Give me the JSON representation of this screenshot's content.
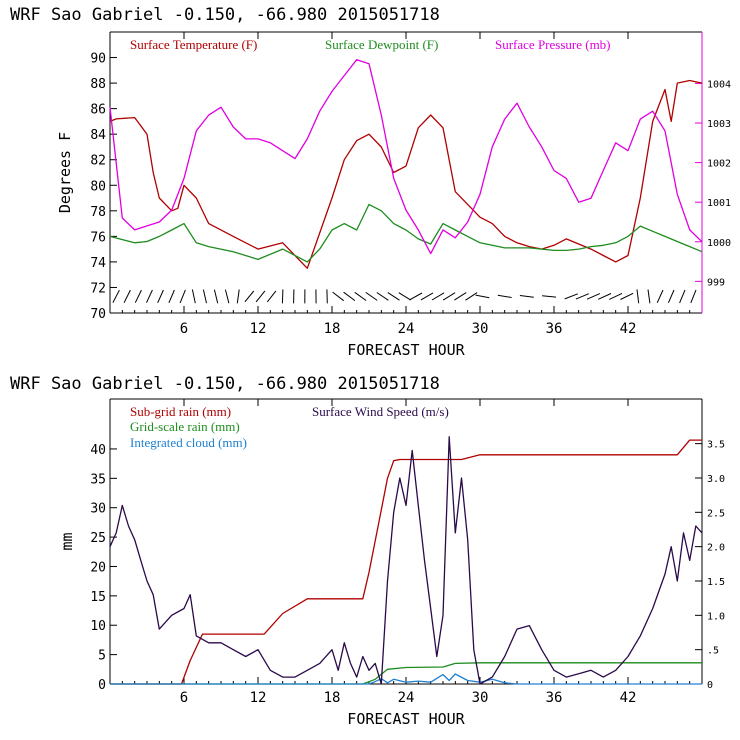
{
  "chart_data": [
    {
      "type": "line",
      "title": "WRF   Sao Gabriel    -0.150, -66.980  2015051718",
      "xlabel": "FORECAST HOUR",
      "ylabel": "Degrees F",
      "xlim": [
        0,
        48
      ],
      "ylim": [
        70,
        92
      ],
      "y2lim": [
        998.2,
        1005.3
      ],
      "x_ticks": [
        6,
        12,
        18,
        24,
        30,
        36,
        42
      ],
      "y_ticks": [
        70,
        72,
        74,
        76,
        78,
        80,
        82,
        84,
        86,
        88,
        90
      ],
      "y2_ticks": [
        999,
        1000,
        1001,
        1002,
        1003,
        1004
      ],
      "legend": [
        "Surface Temperature (F)",
        "Surface Dewpoint (F)",
        "Surface Pressure (mb)"
      ],
      "series": [
        {
          "name": "Surface Temperature (F)",
          "axis": "left",
          "color": "#b00000",
          "x": [
            0,
            0.5,
            2,
            3,
            3.5,
            4,
            5,
            5.5,
            6,
            7,
            8,
            10,
            12,
            14,
            16,
            18,
            19,
            20,
            21,
            22,
            23,
            24,
            25,
            26,
            27,
            28,
            29,
            30,
            31,
            32,
            33,
            34,
            35,
            36,
            37,
            38,
            39,
            40,
            41,
            42,
            43,
            44,
            45,
            45.5,
            46,
            47,
            48
          ],
          "y": [
            85,
            85.2,
            85.3,
            84,
            81,
            79,
            78,
            78.2,
            80,
            79,
            77,
            76,
            75,
            75.5,
            73.5,
            79,
            82,
            83.5,
            84,
            83,
            81,
            81.5,
            84.5,
            85.5,
            84.5,
            79.5,
            78.5,
            77.5,
            77,
            76,
            75.5,
            75.2,
            75,
            75.3,
            75.8,
            75.4,
            75,
            74.5,
            74,
            74.5,
            79,
            85,
            87.5,
            85,
            88,
            88.2,
            88
          ]
        },
        {
          "name": "Surface Dewpoint (F)",
          "axis": "left",
          "color": "#1e8c1e",
          "x": [
            0,
            2,
            3,
            4,
            5,
            6,
            7,
            8,
            10,
            12,
            14,
            16,
            17,
            18,
            19,
            20,
            21,
            22,
            23,
            24,
            25,
            26,
            27,
            28,
            29,
            30,
            31,
            32,
            33,
            34,
            35,
            36,
            37,
            38,
            39,
            40,
            41,
            42,
            43,
            44,
            45,
            46,
            47,
            48
          ],
          "y": [
            76,
            75.5,
            75.6,
            76,
            76.5,
            77,
            75.5,
            75.2,
            74.8,
            74.2,
            75,
            74,
            75,
            76.5,
            77,
            76.5,
            78.5,
            78,
            77,
            76.5,
            75.8,
            75.4,
            77,
            76.5,
            76,
            75.5,
            75.3,
            75.1,
            75.1,
            75.1,
            75,
            74.9,
            74.9,
            75,
            75.2,
            75.3,
            75.5,
            76,
            76.8,
            76.4,
            76,
            75.6,
            75.2,
            74.8
          ]
        },
        {
          "name": "Surface Pressure (mb)",
          "axis": "right",
          "color": "#e000e0",
          "x": [
            0,
            1,
            2,
            3,
            4,
            5,
            6,
            7,
            8,
            9,
            10,
            11,
            12,
            13,
            14,
            15,
            16,
            17,
            18,
            19,
            20,
            21,
            22,
            23,
            24,
            25,
            26,
            27,
            28,
            29,
            30,
            31,
            32,
            33,
            34,
            35,
            36,
            37,
            38,
            39,
            40,
            41,
            42,
            43,
            44,
            45,
            46,
            47,
            48
          ],
          "y": [
            1003.4,
            1000.6,
            1000.3,
            1000.4,
            1000.5,
            1000.8,
            1001.6,
            1002.8,
            1003.2,
            1003.4,
            1002.9,
            1002.6,
            1002.6,
            1002.5,
            1002.3,
            1002.1,
            1002.6,
            1003.3,
            1003.8,
            1004.2,
            1004.6,
            1004.5,
            1003.2,
            1001.6,
            1000.8,
            1000.3,
            999.7,
            1000.3,
            1000.1,
            1000.5,
            1001.2,
            1002.4,
            1003.1,
            1003.5,
            1002.9,
            1002.4,
            1001.8,
            1001.6,
            1001.0,
            1001.1,
            1001.8,
            1002.5,
            1002.3,
            1003.1,
            1003.3,
            1002.8,
            1001.2,
            1000.3,
            1000.0
          ]
        }
      ]
    },
    {
      "type": "line",
      "title": "WRF   Sao Gabriel    -0.150, -66.980  2015051718",
      "xlabel": "FORECAST HOUR",
      "ylabel": "mm",
      "xlim": [
        0,
        48
      ],
      "ylim": [
        0,
        48.5
      ],
      "y2lim": [
        0,
        4.15
      ],
      "x_ticks": [
        6,
        12,
        18,
        24,
        30,
        36,
        42
      ],
      "y_ticks": [
        0,
        5,
        10,
        15,
        20,
        25,
        30,
        35,
        40
      ],
      "y2_ticks": [
        0,
        0.5,
        1.0,
        1.5,
        2.0,
        2.5,
        3.0,
        3.5
      ],
      "y2_tick_labels": [
        "0",
        ".5",
        "1.0",
        "1.5",
        "2.0",
        "2.5",
        "3.0",
        "3.5"
      ],
      "legend": [
        "Sub-grid rain (mm)",
        "Surface Wind Speed (m/s)",
        "Grid-scale rain (mm)",
        "Integrated cloud (mm)"
      ],
      "series": [
        {
          "name": "Sub-grid rain (mm)",
          "axis": "left",
          "color": "#b00000",
          "x": [
            0,
            5.8,
            6.5,
            7.5,
            8,
            12.5,
            14,
            16,
            19,
            20.5,
            21,
            22.5,
            23,
            23.5,
            28.5,
            30,
            46,
            47,
            48
          ],
          "y": [
            0,
            0,
            4,
            8.5,
            8.5,
            8.5,
            12,
            14.5,
            14.5,
            14.5,
            19,
            35,
            38,
            38.2,
            38.2,
            39,
            39,
            41.5,
            41.5
          ]
        },
        {
          "name": "Grid-scale rain (mm)",
          "axis": "left",
          "color": "#1e8c1e",
          "x": [
            0,
            20.5,
            21.5,
            22.5,
            24,
            27,
            28,
            30,
            48
          ],
          "y": [
            0,
            0,
            0.8,
            2.5,
            2.8,
            2.9,
            3.5,
            3.6,
            3.6
          ]
        },
        {
          "name": "Integrated cloud (mm)",
          "axis": "left",
          "color": "#2080d0",
          "x": [
            0,
            21,
            21.5,
            22,
            22.5,
            23,
            24,
            25,
            26,
            27,
            27.5,
            28,
            29,
            30,
            31,
            32,
            33,
            48
          ],
          "y": [
            0,
            0,
            0.4,
            0.9,
            0.2,
            0.8,
            0.3,
            0.5,
            0.3,
            1.6,
            0.6,
            1.7,
            0.6,
            0.3,
            0.8,
            0.2,
            0,
            0
          ]
        },
        {
          "name": "Surface Wind Speed (m/s)",
          "axis": "right",
          "color": "#2a0a4a",
          "x": [
            0,
            0.5,
            1,
            1.5,
            2,
            2.5,
            3,
            3.5,
            4,
            4.5,
            5,
            6,
            6.5,
            7,
            8,
            9,
            10,
            11,
            12,
            13,
            14,
            15,
            16,
            17,
            18,
            18.5,
            19,
            19.5,
            20,
            20.5,
            21,
            21.5,
            22,
            22.5,
            23,
            23.5,
            24,
            24.5,
            25,
            25.5,
            26,
            26.5,
            27,
            27.5,
            28,
            28.5,
            29,
            29.5,
            30,
            31,
            32,
            33,
            34,
            35,
            36,
            37,
            38,
            39,
            40,
            41,
            42,
            43,
            44,
            45,
            45.5,
            46,
            46.5,
            47,
            47.5,
            48
          ],
          "y": [
            2.0,
            2.2,
            2.6,
            2.3,
            2.1,
            1.8,
            1.5,
            1.3,
            0.8,
            0.9,
            1.0,
            1.1,
            1.3,
            0.7,
            0.6,
            0.6,
            0.5,
            0.4,
            0.5,
            0.2,
            0.1,
            0.1,
            0.2,
            0.3,
            0.5,
            0.2,
            0.6,
            0.3,
            0.1,
            0.4,
            0.2,
            0.3,
            0.0,
            1.5,
            2.5,
            3.0,
            2.6,
            3.4,
            2.6,
            1.8,
            1.1,
            0.4,
            1.0,
            3.6,
            2.2,
            3.0,
            2.1,
            0.5,
            0.0,
            0.1,
            0.4,
            0.8,
            0.85,
            0.5,
            0.2,
            0.1,
            0.15,
            0.2,
            0.1,
            0.2,
            0.4,
            0.7,
            1.1,
            1.6,
            2.0,
            1.5,
            2.2,
            1.8,
            2.3,
            2.2
          ]
        }
      ]
    }
  ]
}
